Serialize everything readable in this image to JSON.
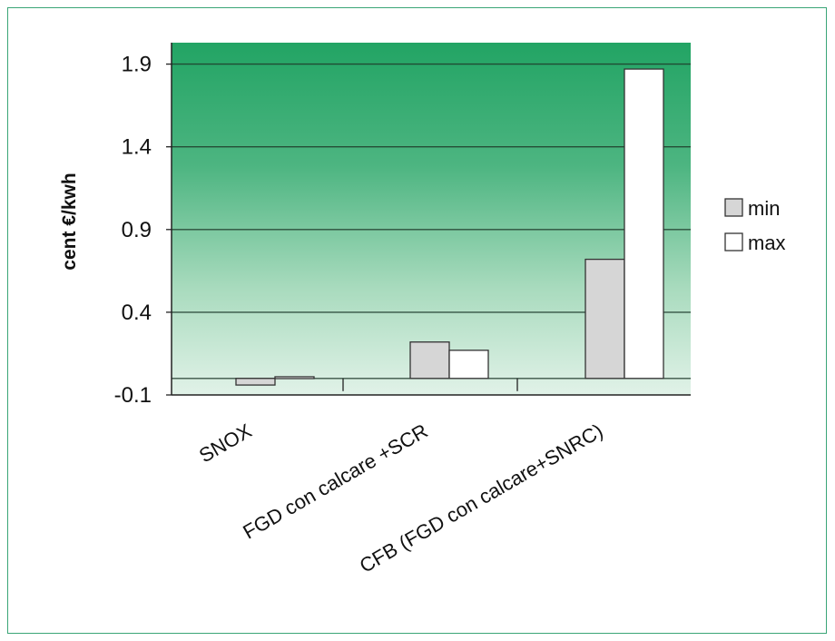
{
  "chart_data": {
    "type": "bar",
    "ylabel": "cent €/kwh",
    "xlabel": "",
    "title": "",
    "categories": [
      "SNOX",
      "FGD con calcare +SCR",
      "CFB (FGD con calcare+SNRC)"
    ],
    "series": [
      {
        "name": "min",
        "values": [
          -0.04,
          0.22,
          0.72
        ],
        "color": "#d6d6d6"
      },
      {
        "name": "max",
        "values": [
          0.01,
          0.17,
          1.87
        ],
        "color": "#ffffff"
      }
    ],
    "yticks": [
      "1.9",
      "1.4",
      "0.9",
      "0.4",
      "-0.1"
    ],
    "ytick_values": [
      1.9,
      1.4,
      0.9,
      0.4,
      -0.1
    ],
    "ylim": [
      -0.1,
      2.0
    ],
    "grid": true,
    "legend_position": "right",
    "colors": {
      "frame_border": "#3aa577",
      "plot_top": "#22a464",
      "plot_bottom": "#e1f2e8",
      "gridline": "#1e3a2a",
      "bar_stroke": "#333333"
    }
  }
}
